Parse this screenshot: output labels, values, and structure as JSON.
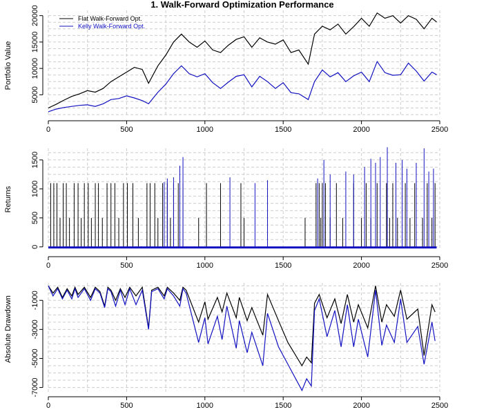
{
  "title": "1. Walk-Forward Optimization Performance",
  "colors": {
    "flat": "#000000",
    "kelly": "#1010c0",
    "grid": "#cccccc"
  },
  "legend": [
    {
      "label": "Flat Walk-Forward Opt.",
      "color": "#000000"
    },
    {
      "label": "Kelly Walk-Forward Opt.",
      "color": "#1010c0"
    }
  ],
  "chart_data": [
    {
      "type": "line",
      "name": "portfolio",
      "ylabel": "Portfolio Value",
      "xlim": [
        0,
        2500
      ],
      "ylim": [
        1000,
        21000
      ],
      "xticks": [
        0,
        500,
        1000,
        1500,
        2000,
        2500
      ],
      "yticks": [
        5000,
        10000,
        15000,
        20000
      ],
      "series": [
        {
          "name": "Flat Walk-Forward Opt.",
          "x": [
            0,
            50,
            100,
            150,
            200,
            250,
            300,
            350,
            400,
            450,
            500,
            550,
            600,
            640,
            700,
            750,
            800,
            850,
            900,
            950,
            1000,
            1050,
            1100,
            1150,
            1200,
            1250,
            1300,
            1350,
            1400,
            1450,
            1500,
            1550,
            1600,
            1660,
            1700,
            1750,
            1800,
            1850,
            1900,
            1950,
            2000,
            2050,
            2100,
            2150,
            2200,
            2250,
            2300,
            2350,
            2400,
            2450,
            2480
          ],
          "values": [
            2500,
            3200,
            4000,
            4700,
            5200,
            5800,
            5500,
            6200,
            7500,
            8400,
            9300,
            10200,
            9800,
            7200,
            10500,
            12500,
            15000,
            16500,
            15000,
            14000,
            15200,
            13500,
            13000,
            14400,
            15500,
            16000,
            14000,
            15800,
            15000,
            14600,
            15400,
            13000,
            13500,
            10800,
            16500,
            18000,
            17300,
            18400,
            16500,
            17900,
            19500,
            18000,
            20500,
            19500,
            20000,
            18600,
            20000,
            19300,
            17500,
            19500,
            18800
          ]
        },
        {
          "name": "Kelly Walk-Forward Opt.",
          "x": [
            0,
            50,
            100,
            150,
            200,
            250,
            300,
            350,
            400,
            450,
            500,
            550,
            600,
            640,
            700,
            750,
            800,
            850,
            900,
            950,
            1000,
            1050,
            1100,
            1150,
            1200,
            1250,
            1300,
            1350,
            1400,
            1450,
            1500,
            1550,
            1600,
            1660,
            1700,
            1750,
            1800,
            1850,
            1900,
            1950,
            2000,
            2050,
            2100,
            2150,
            2200,
            2250,
            2300,
            2350,
            2400,
            2450,
            2480
          ],
          "values": [
            1800,
            2300,
            2600,
            2800,
            3000,
            3100,
            2800,
            3300,
            4100,
            4300,
            4800,
            4400,
            3900,
            3300,
            5500,
            7000,
            9000,
            10500,
            9000,
            8400,
            9000,
            7300,
            6200,
            7400,
            8500,
            8800,
            6500,
            8500,
            7500,
            6200,
            7300,
            5400,
            5200,
            4100,
            7500,
            9700,
            8400,
            9200,
            7500,
            8600,
            9300,
            7500,
            11300,
            9200,
            8700,
            8800,
            11000,
            9500,
            7600,
            9300,
            8800
          ]
        }
      ]
    },
    {
      "type": "line",
      "name": "returns",
      "ylabel": "Returns",
      "xlim": [
        0,
        2500
      ],
      "ylim": [
        -50,
        1700
      ],
      "xticks": [
        0,
        500,
        1000,
        1500,
        2000,
        2500
      ],
      "yticks": [
        0,
        500,
        1000,
        1500
      ],
      "baseline": {
        "flat": -10,
        "kelly": -10
      },
      "series": [
        {
          "name": "Flat Walk-Forward Opt.",
          "spikes_x": [
            15,
            35,
            55,
            75,
            95,
            115,
            135,
            165,
            190,
            210,
            230,
            255,
            275,
            300,
            320,
            345,
            375,
            400,
            425,
            450,
            480,
            505,
            540,
            575,
            630,
            650,
            680,
            700,
            730,
            760,
            780,
            800,
            830,
            860,
            960,
            1010,
            1100,
            1230,
            1250,
            1640,
            1710,
            1730,
            1740,
            1750,
            1770,
            1800,
            1840,
            1880,
            1950,
            2000,
            2030,
            2060,
            2100,
            2160,
            2180,
            2200,
            2230,
            2280,
            2310,
            2340,
            2390,
            2420,
            2450,
            2470
          ],
          "spikes_y": [
            1100,
            1100,
            1100,
            500,
            1100,
            1100,
            500,
            1100,
            1100,
            500,
            1100,
            1100,
            500,
            1100,
            1100,
            500,
            1100,
            1100,
            1100,
            500,
            1100,
            1100,
            1100,
            500,
            1100,
            1100,
            1100,
            500,
            1100,
            1100,
            500,
            1100,
            1100,
            1100,
            500,
            1100,
            1100,
            1100,
            500,
            500,
            1100,
            1100,
            500,
            1100,
            1100,
            500,
            1100,
            500,
            1100,
            500,
            1100,
            500,
            1100,
            1100,
            500,
            1100,
            500,
            1100,
            500,
            1100,
            500,
            1100,
            500,
            1100
          ]
        },
        {
          "name": "Kelly Walk-Forward Opt.",
          "spikes_x": [
            740,
            760,
            800,
            840,
            860,
            1160,
            1320,
            1400,
            1720,
            1760,
            1800,
            1900,
            1950,
            2020,
            2060,
            2090,
            2120,
            2165,
            2220,
            2260,
            2290,
            2350,
            2400,
            2430,
            2460
          ],
          "spikes_y": [
            1120,
            1180,
            1200,
            1400,
            1550,
            1200,
            1100,
            1150,
            1180,
            1500,
            1250,
            1300,
            1250,
            1380,
            1520,
            1450,
            1550,
            1720,
            1450,
            1500,
            1350,
            1450,
            1700,
            1300,
            1350
          ]
        }
      ]
    },
    {
      "type": "line",
      "name": "drawdown",
      "ylabel": "Absolute Drawdown",
      "xlim": [
        0,
        2500
      ],
      "ylim": [
        -7400,
        200
      ],
      "xticks": [
        0,
        500,
        1000,
        1500,
        2000,
        2500
      ],
      "yticks": [
        -1000,
        -3000,
        -5000,
        -7000
      ],
      "series": [
        {
          "name": "Flat Walk-Forward Opt.",
          "x": [
            0,
            30,
            60,
            90,
            120,
            150,
            170,
            190,
            230,
            270,
            300,
            330,
            360,
            380,
            400,
            430,
            460,
            490,
            520,
            560,
            600,
            640,
            660,
            700,
            740,
            760,
            800,
            840,
            860,
            880,
            960,
            1000,
            1020,
            1080,
            1110,
            1140,
            1200,
            1220,
            1270,
            1300,
            1370,
            1400,
            1470,
            1530,
            1620,
            1650,
            1680,
            1700,
            1730,
            1780,
            1830,
            1870,
            1910,
            1950,
            1980,
            2040,
            2090,
            2130,
            2160,
            2210,
            2250,
            2290,
            2360,
            2400,
            2450,
            2470
          ],
          "values": [
            0,
            -500,
            -100,
            -800,
            -200,
            -700,
            -100,
            -600,
            -100,
            -800,
            -100,
            -400,
            -1400,
            -100,
            -300,
            -1000,
            -200,
            -800,
            -100,
            -700,
            -100,
            -2900,
            -300,
            -100,
            -700,
            -100,
            -500,
            -1000,
            -100,
            -300,
            -2500,
            -1100,
            -2300,
            -800,
            -1800,
            -500,
            -2200,
            -800,
            -2400,
            -1500,
            -3400,
            -600,
            -2400,
            -3900,
            -5500,
            -4900,
            -5300,
            -1200,
            -600,
            -2200,
            -900,
            -2600,
            -600,
            -2500,
            -1300,
            -2900,
            0,
            -2500,
            -1300,
            -2100,
            -300,
            -2300,
            -1600,
            -4800,
            -1300,
            -1800
          ]
        },
        {
          "name": "Kelly Walk-Forward Opt.",
          "x": [
            0,
            30,
            60,
            90,
            120,
            150,
            170,
            190,
            230,
            270,
            300,
            330,
            360,
            380,
            400,
            430,
            460,
            490,
            520,
            560,
            600,
            640,
            660,
            700,
            740,
            760,
            800,
            840,
            860,
            880,
            960,
            1000,
            1020,
            1080,
            1110,
            1140,
            1200,
            1220,
            1270,
            1300,
            1370,
            1400,
            1470,
            1530,
            1620,
            1650,
            1680,
            1700,
            1730,
            1780,
            1830,
            1870,
            1910,
            1950,
            1980,
            2040,
            2090,
            2130,
            2160,
            2210,
            2250,
            2290,
            2360,
            2400,
            2450,
            2470
          ],
          "values": [
            0,
            -700,
            -200,
            -900,
            -300,
            -900,
            -200,
            -800,
            -200,
            -1000,
            -200,
            -500,
            -1500,
            -200,
            -400,
            -1400,
            -300,
            -1300,
            -200,
            -1300,
            -300,
            -3000,
            -400,
            -200,
            -900,
            -200,
            -700,
            -1400,
            -200,
            -500,
            -3900,
            -2200,
            -4000,
            -2100,
            -3700,
            -1400,
            -4300,
            -2400,
            -4600,
            -3200,
            -5500,
            -1900,
            -4200,
            -5400,
            -7200,
            -6400,
            -6900,
            -1700,
            -900,
            -3500,
            -1700,
            -4200,
            -1300,
            -4200,
            -2300,
            -4900,
            -300,
            -4100,
            -2700,
            -3900,
            -900,
            -3900,
            -2800,
            -5400,
            -2500,
            -3800
          ]
        }
      ]
    }
  ]
}
